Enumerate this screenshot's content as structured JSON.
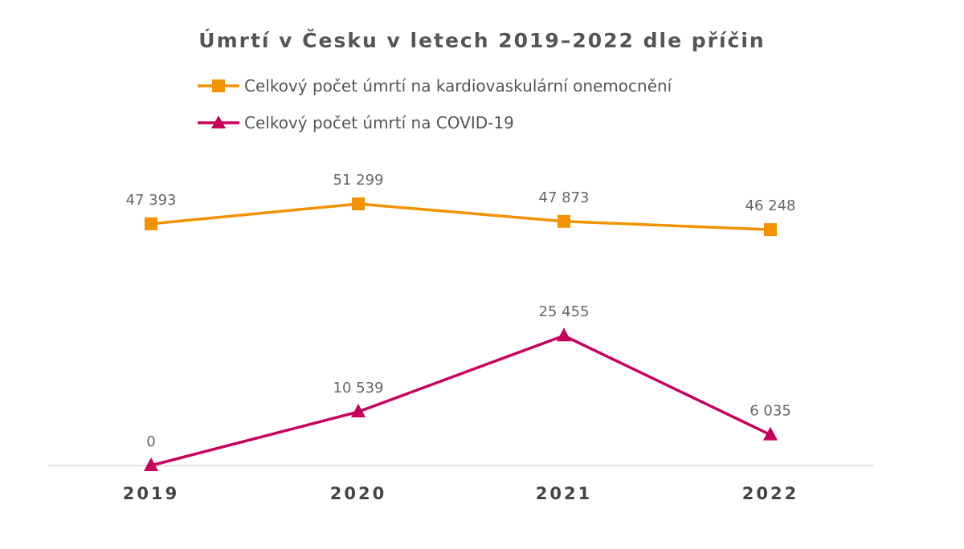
{
  "chart_data": {
    "type": "line",
    "title": "Úmrtí v Česku v letech 2019–2022 dle příčin",
    "categories": [
      "2019",
      "2020",
      "2021",
      "2022"
    ],
    "series": [
      {
        "name": "Celkový počet úmrtí na kardiovaskulární onemocnění",
        "values": [
          47393,
          51299,
          47873,
          46248
        ],
        "labels": [
          "47 393",
          "51 299",
          "47 873",
          "46 248"
        ],
        "color": "#F39200",
        "marker": "square"
      },
      {
        "name": "Celkový počet úmrtí na COVID-19",
        "values": [
          0,
          10539,
          25455,
          6035
        ],
        "labels": [
          "0",
          "10 539",
          "25 455",
          "6 035"
        ],
        "color": "#C8005A",
        "marker": "triangle"
      }
    ],
    "ylim": [
      0,
      55000
    ],
    "legend": "top",
    "grid": false
  }
}
